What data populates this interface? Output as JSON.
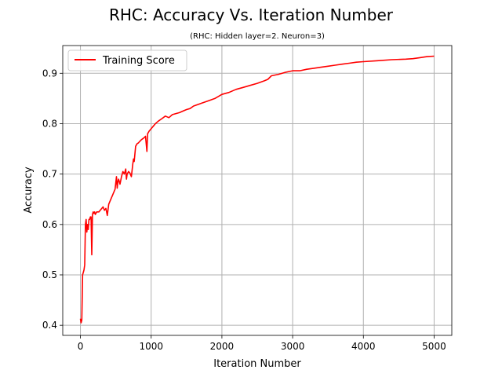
{
  "chart_data": {
    "type": "line",
    "title": "RHC: Accuracy Vs. Iteration Number",
    "subtitle": "(RHC: Hidden layer=2. Neuron=3)",
    "xlabel": "Iteration Number",
    "ylabel": "Accuracy",
    "xlim": [
      -250,
      5250
    ],
    "ylim": [
      0.38,
      0.955
    ],
    "xticks": [
      0,
      1000,
      2000,
      3000,
      4000,
      5000
    ],
    "yticks": [
      0.4,
      0.5,
      0.6,
      0.7,
      0.8,
      0.9
    ],
    "grid": true,
    "legend_position": "top-left",
    "series": [
      {
        "name": "Training Score",
        "color": "#ff0000",
        "x": [
          0,
          10,
          20,
          30,
          40,
          50,
          60,
          70,
          80,
          90,
          100,
          110,
          120,
          130,
          140,
          150,
          160,
          170,
          180,
          190,
          200,
          210,
          230,
          260,
          290,
          320,
          340,
          360,
          380,
          400,
          430,
          460,
          490,
          510,
          520,
          530,
          540,
          560,
          580,
          600,
          620,
          640,
          650,
          660,
          680,
          700,
          720,
          740,
          750,
          760,
          780,
          800,
          820,
          840,
          860,
          880,
          900,
          920,
          930,
          940,
          950,
          970,
          1000,
          1030,
          1060,
          1100,
          1150,
          1200,
          1250,
          1300,
          1350,
          1400,
          1450,
          1500,
          1550,
          1600,
          1700,
          1800,
          1900,
          2000,
          2100,
          2200,
          2300,
          2400,
          2500,
          2600,
          2650,
          2700,
          2800,
          2900,
          3000,
          3100,
          3200,
          3300,
          3400,
          3500,
          3600,
          3700,
          3800,
          3900,
          4000,
          4200,
          4400,
          4600,
          4700,
          4800,
          4900,
          5000
        ],
        "y": [
          0.413,
          0.405,
          0.41,
          0.5,
          0.505,
          0.51,
          0.52,
          0.6,
          0.61,
          0.585,
          0.6,
          0.59,
          0.61,
          0.61,
          0.615,
          0.615,
          0.54,
          0.62,
          0.625,
          0.622,
          0.625,
          0.62,
          0.625,
          0.625,
          0.63,
          0.635,
          0.628,
          0.632,
          0.618,
          0.64,
          0.65,
          0.66,
          0.67,
          0.695,
          0.672,
          0.685,
          0.69,
          0.68,
          0.695,
          0.705,
          0.7,
          0.71,
          0.69,
          0.7,
          0.705,
          0.702,
          0.695,
          0.72,
          0.73,
          0.725,
          0.755,
          0.76,
          0.762,
          0.765,
          0.768,
          0.77,
          0.772,
          0.775,
          0.76,
          0.745,
          0.78,
          0.785,
          0.79,
          0.795,
          0.8,
          0.805,
          0.81,
          0.815,
          0.812,
          0.818,
          0.82,
          0.822,
          0.825,
          0.828,
          0.83,
          0.835,
          0.84,
          0.845,
          0.85,
          0.858,
          0.862,
          0.868,
          0.872,
          0.876,
          0.88,
          0.885,
          0.888,
          0.895,
          0.898,
          0.902,
          0.905,
          0.905,
          0.908,
          0.91,
          0.912,
          0.914,
          0.916,
          0.918,
          0.92,
          0.922,
          0.923,
          0.925,
          0.927,
          0.928,
          0.929,
          0.931,
          0.933,
          0.934
        ]
      }
    ]
  }
}
